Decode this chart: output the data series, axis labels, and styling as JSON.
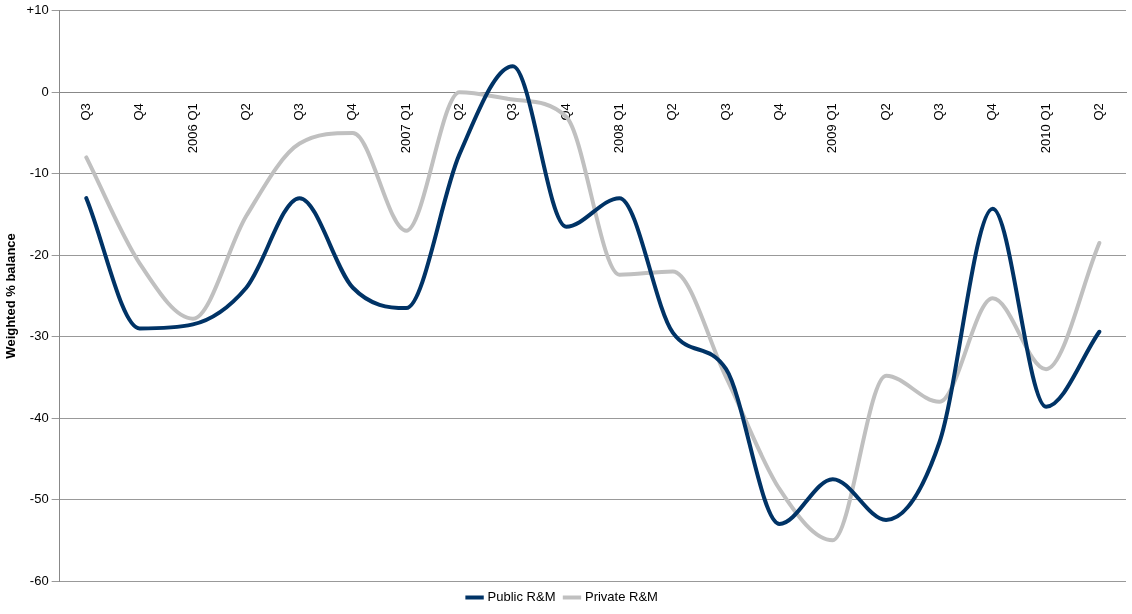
{
  "chart_data": {
    "type": "line",
    "ylabel": "Weighted % balance",
    "categories": [
      "Q3",
      "Q4",
      "2006 Q1",
      "Q2",
      "Q3",
      "Q4",
      "2007 Q1",
      "Q2",
      "Q3",
      "Q4",
      "2008 Q1",
      "Q2",
      "Q3",
      "Q4",
      "2009 Q1",
      "Q2",
      "Q3",
      "Q4",
      "2010 Q1",
      "Q2"
    ],
    "series": [
      {
        "name": "Public R&M",
        "color": "#003366",
        "values": [
          -13,
          -29,
          -28.5,
          -24,
          -13,
          -24,
          -26.5,
          -7.6,
          3.2,
          -16.5,
          -13,
          -29.5,
          -34,
          -53,
          -47.5,
          -52.5,
          -43,
          -14.3,
          -38.6,
          -29.4
        ]
      },
      {
        "name": "Private R&M",
        "color": "#c0c0c0",
        "values": [
          -8,
          -21,
          -27.8,
          -15.2,
          -6.3,
          -5,
          -17,
          0,
          -0.9,
          -3,
          -22.4,
          -22,
          -35,
          -48.7,
          -55,
          -34.8,
          -38,
          -25.3,
          -34,
          -18.5
        ]
      }
    ],
    "ylim": [
      -60,
      10
    ],
    "yticks": [
      -60,
      -50,
      -40,
      -30,
      -20,
      -10,
      0,
      {
        "value": 10,
        "label": "+10"
      }
    ],
    "grid": "y",
    "legend": "bottom",
    "marker": "none",
    "line_style": "solid"
  }
}
